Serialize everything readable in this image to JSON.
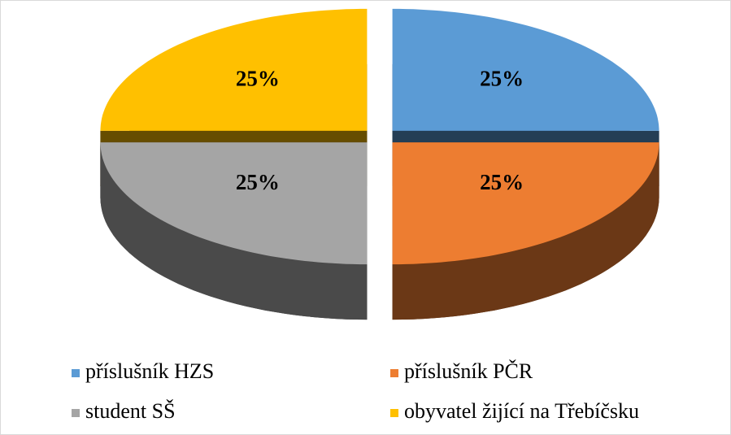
{
  "chart_data": {
    "type": "pie",
    "categories": [
      "příslušník HZS",
      "příslušník PČR",
      "student SŠ",
      "obyvatel žijící na Třebíčsku"
    ],
    "values": [
      25,
      25,
      25,
      25
    ],
    "value_labels": [
      "25%",
      "25%",
      "25%",
      "25%"
    ],
    "colors": [
      "#5b9bd5",
      "#ed7d31",
      "#a5a5a5",
      "#ffc000"
    ],
    "legend": "bottom"
  }
}
